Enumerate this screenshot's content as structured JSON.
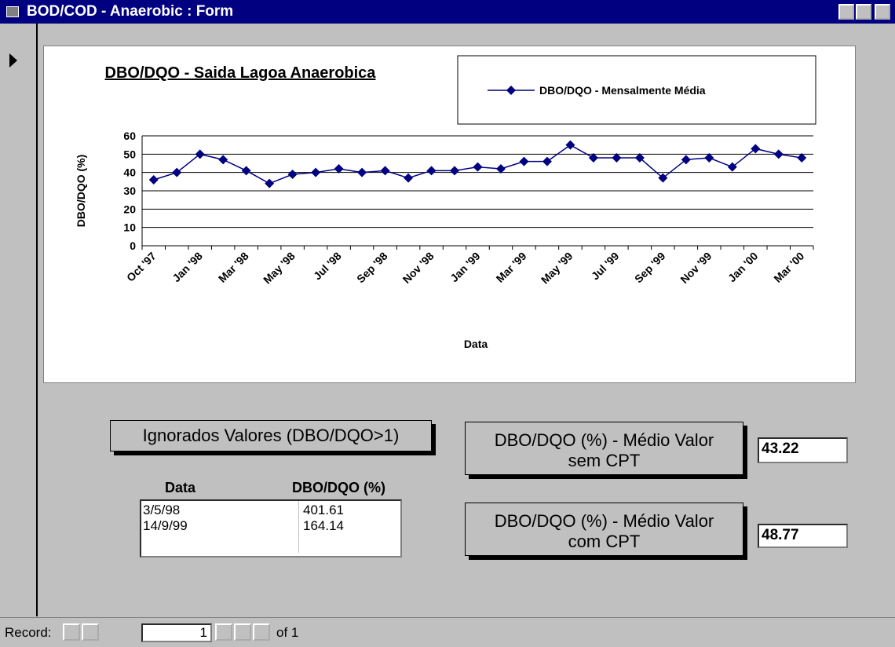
{
  "window": {
    "title": "BOD/COD - Anaerobic : Form"
  },
  "chart_data": {
    "type": "line",
    "title": "DBO/DQO - Saida Lagoa Anaerobica",
    "x_label": "Data",
    "y_label": "DBO/DQO (%)",
    "categories": [
      "Oct '97",
      null,
      "Jan '98",
      null,
      "Mar '98",
      null,
      "May '98",
      null,
      "Jul '98",
      null,
      "Sep '98",
      null,
      "Nov '98",
      null,
      "Jan '99",
      null,
      "Mar '99",
      null,
      "May '99",
      null,
      "Jul '99",
      null,
      "Sep '99",
      null,
      "Nov '99",
      null,
      "Jan '00",
      null,
      "Mar '00"
    ],
    "series": [
      {
        "name": "DBO/DQO - Mensalmente Média",
        "color": "#000080",
        "values": [
          36,
          40,
          50,
          47,
          41,
          34,
          39,
          40,
          42,
          40,
          41,
          37,
          41,
          41,
          43,
          42,
          46,
          46,
          55,
          48,
          48,
          48,
          37,
          47,
          48,
          43,
          53,
          50,
          48
        ]
      }
    ],
    "ylim": [
      0,
      60
    ],
    "yticks": [
      0,
      10,
      20,
      30,
      40,
      50,
      60
    ],
    "grid": true,
    "legend": "top-right"
  },
  "ignored": {
    "label": "Ignorados Valores (DBO/DQO>1)",
    "columns": [
      "Data",
      "DBO/DQO (%)"
    ],
    "rows": [
      [
        "3/5/98",
        "401.61"
      ],
      [
        "14/9/99",
        "164.14"
      ]
    ]
  },
  "stats": [
    {
      "label": "DBO/DQO (%) - Médio Valor sem CPT",
      "value": "43.22"
    },
    {
      "label": "DBO/DQO (%) - Médio Valor com CPT",
      "value": "48.77"
    }
  ],
  "navigator": {
    "label": "Record:",
    "current": "1",
    "total": "of 1"
  }
}
